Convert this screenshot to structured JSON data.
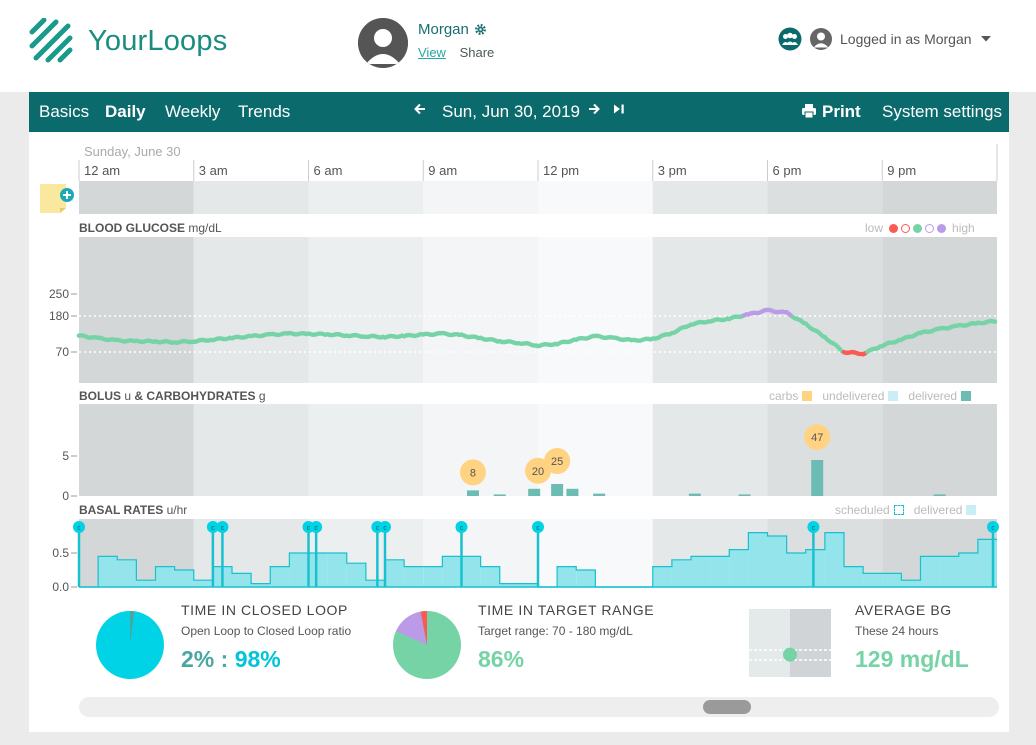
{
  "app": {
    "name": "YourLoops"
  },
  "patient": {
    "name": "Morgan",
    "view_link": "View",
    "share_link": "Share"
  },
  "user": {
    "logged_in_text": "Logged in as Morgan"
  },
  "nav": {
    "tabs": [
      "Basics",
      "Daily",
      "Weekly",
      "Trends"
    ],
    "active_tab": "Daily",
    "date": "Sun, Jun 30, 2019",
    "print_label": "Print",
    "settings_label": "System settings"
  },
  "timeline": {
    "day_label": "Sunday, June 30",
    "hour_labels": [
      "12 am",
      "3 am",
      "6 am",
      "9 am",
      "12 pm",
      "3 pm",
      "6 pm",
      "9 pm"
    ]
  },
  "colors": {
    "teal": "#0b6a6c",
    "bg_normal": "#76d3a6",
    "bg_high": "#bb9ae7",
    "bg_low": "#fb5951",
    "carbs": "#ffd382",
    "bolus": "#6cbcb3",
    "basal": "#94e5eb",
    "basal_line": "#19c0cf",
    "loop": "#00d3e6"
  },
  "chart_data": [
    {
      "type": "scatter",
      "title": "BLOOD GLUCOSE",
      "unit": "mg/dL",
      "y_ticks": [
        70,
        180,
        250
      ],
      "target_range": [
        70,
        180
      ],
      "legend": {
        "low": "low",
        "high": "high",
        "placement": "top-right"
      },
      "x": [
        0,
        0.5,
        1,
        1.5,
        2,
        2.5,
        3,
        3.5,
        4,
        4.5,
        5,
        5.5,
        6,
        6.5,
        7,
        7.5,
        8,
        8.5,
        9,
        9.5,
        10,
        10.5,
        11,
        11.5,
        12,
        12.5,
        13,
        13.5,
        14,
        14.5,
        15,
        15.5,
        16,
        16.5,
        17,
        17.5,
        18,
        18.5,
        19,
        19.5,
        20,
        20.5,
        21,
        21.5,
        22,
        22.5,
        23,
        23.5,
        24
      ],
      "y": [
        120,
        112,
        105,
        103,
        102,
        100,
        103,
        108,
        113,
        118,
        123,
        126,
        125,
        124,
        121,
        118,
        116,
        119,
        123,
        126,
        121,
        112,
        103,
        98,
        90,
        95,
        108,
        118,
        112,
        105,
        110,
        128,
        155,
        165,
        172,
        185,
        198,
        190,
        155,
        115,
        70,
        65,
        90,
        108,
        128,
        140,
        150,
        158,
        165
      ]
    },
    {
      "type": "bar",
      "title": "BOLUS & CARBOHYDRATES",
      "unit_bolus": "u",
      "unit_carbs": "g",
      "y_ticks": [
        0,
        5
      ],
      "legend": {
        "carbs": "carbs",
        "undelivered": "undelivered",
        "delivered": "delivered",
        "placement": "top-right"
      },
      "carbs": [
        {
          "hour": 10.3,
          "grams": 8
        },
        {
          "hour": 12.0,
          "grams": 20
        },
        {
          "hour": 12.5,
          "grams": 25
        },
        {
          "hour": 19.3,
          "grams": 47
        }
      ],
      "bolus": [
        {
          "hour": 10.3,
          "units": 0.7
        },
        {
          "hour": 11.0,
          "units": 0.2
        },
        {
          "hour": 11.9,
          "units": 0.9
        },
        {
          "hour": 12.5,
          "units": 1.5
        },
        {
          "hour": 12.9,
          "units": 0.9
        },
        {
          "hour": 13.6,
          "units": 0.3
        },
        {
          "hour": 16.1,
          "units": 0.3
        },
        {
          "hour": 17.4,
          "units": 0.2
        },
        {
          "hour": 19.3,
          "units": 4.5
        },
        {
          "hour": 22.5,
          "units": 0.2
        }
      ]
    },
    {
      "type": "area",
      "title": "BASAL RATES",
      "unit": "u/hr",
      "y_ticks": [
        0.0,
        0.5
      ],
      "legend": {
        "scheduled": "scheduled",
        "delivered": "delivered",
        "placement": "top-right"
      },
      "x": [
        0,
        0.5,
        1,
        1.5,
        2,
        2.5,
        3,
        3.5,
        4,
        4.5,
        5,
        5.5,
        6,
        6.5,
        7,
        7.5,
        8,
        8.5,
        9,
        9.5,
        10,
        10.5,
        11,
        11.5,
        12,
        12.5,
        13,
        13.5,
        14,
        14.5,
        15,
        15.5,
        16,
        16.5,
        17,
        17.5,
        18,
        18.5,
        19,
        19.5,
        20,
        20.5,
        21,
        21.5,
        22,
        22.5,
        23,
        23.5
      ],
      "rate": [
        0,
        0.45,
        0.4,
        0.1,
        0.3,
        0.25,
        0.1,
        0.3,
        0.2,
        0.05,
        0.3,
        0.5,
        0.5,
        0.5,
        0.35,
        0.1,
        0.4,
        0.3,
        0.3,
        0.45,
        0.45,
        0.3,
        0.05,
        0.05,
        0,
        0.3,
        0.25,
        0,
        0,
        0,
        0.3,
        0.4,
        0.45,
        0.45,
        0.55,
        0.8,
        0.75,
        0.5,
        0.55,
        0.8,
        0.3,
        0.2,
        0.2,
        0.1,
        0.45,
        0.45,
        0.5,
        0.7
      ],
      "loop_hours": [
        0,
        3.5,
        3.75,
        6.0,
        6.2,
        7.8,
        8.0,
        10.0,
        12.0,
        19.2,
        24.0
      ]
    },
    {
      "type": "pie",
      "title": "TIME IN CLOSED LOOP",
      "subtitle": "Open Loop to Closed Loop ratio",
      "value_open": "2%",
      "value_separator": ":",
      "value_closed": "98%",
      "slices": [
        {
          "value": 2,
          "color": "#4aa6a0"
        },
        {
          "value": 98,
          "color": "#00d3e6"
        }
      ]
    },
    {
      "type": "pie",
      "title": "TIME IN TARGET RANGE",
      "subtitle": "Target range: 70 - 180 mg/dL",
      "value": "86%",
      "slices": [
        {
          "value": 86,
          "color": "#76d3a6"
        },
        {
          "value": 11,
          "color": "#bb9ae7"
        },
        {
          "value": 3,
          "color": "#fb5951"
        }
      ]
    },
    {
      "type": "scatter",
      "title": "AVERAGE BG",
      "subtitle": "These 24 hours",
      "value": "129 mg/dL",
      "average": 129
    }
  ]
}
